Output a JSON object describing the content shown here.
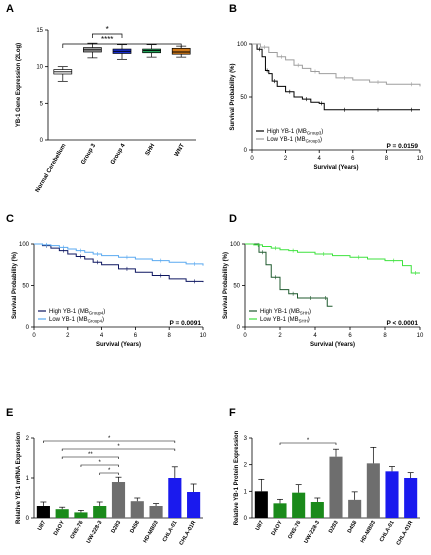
{
  "chart_data": [
    {
      "panel": "A",
      "type": "box",
      "ylabel": "YB-1 Gene Expression (2Log)",
      "ylim": [
        0,
        15
      ],
      "yticks": [
        "0",
        "5",
        "10",
        "15"
      ],
      "categories": [
        "Normal Cerebellum",
        "Group 3",
        "Group 4",
        "SHH",
        "WNT"
      ],
      "colors": [
        "#ffffff",
        "#9e9e9e",
        "#1a2fd0",
        "#23a35a",
        "#d17a1a"
      ],
      "boxes": [
        {
          "min": 8.0,
          "q1": 9.0,
          "median": 9.3,
          "q3": 9.6,
          "max": 10.0
        },
        {
          "min": 11.2,
          "q1": 12.0,
          "median": 12.3,
          "q3": 12.6,
          "max": 13.2
        },
        {
          "min": 11.0,
          "q1": 11.8,
          "median": 12.1,
          "q3": 12.4,
          "max": 13.0
        },
        {
          "min": 11.3,
          "q1": 11.9,
          "median": 12.2,
          "q3": 12.4,
          "max": 13.0
        },
        {
          "min": 11.3,
          "q1": 11.7,
          "median": 12.0,
          "q3": 12.5,
          "max": 12.8
        }
      ],
      "annotations": [
        "*",
        "****"
      ]
    },
    {
      "panel": "B",
      "type": "line",
      "ylabel": "Survival Probability (%)",
      "xlabel": "Survival (Years)",
      "xlim": [
        0,
        10
      ],
      "ylim": [
        0,
        100
      ],
      "xticks": [
        "0",
        "2",
        "4",
        "6",
        "8",
        "10"
      ],
      "yticks": [
        "0",
        "50",
        "100"
      ],
      "series": [
        {
          "name": "High YB-1 (MBGroup3)",
          "color": "#000000",
          "x": [
            0,
            0.3,
            0.6,
            0.8,
            1.0,
            1.2,
            1.5,
            2.0,
            2.5,
            3.0,
            3.5,
            4.0,
            4.3,
            5.0,
            6.0,
            7.0,
            8.0,
            9.0,
            10
          ],
          "y": [
            100,
            95,
            88,
            75,
            72,
            65,
            60,
            55,
            50,
            48,
            45,
            44,
            38,
            38,
            38,
            38,
            38,
            38,
            38
          ]
        },
        {
          "name": "Low YB-1 (MBGroup3)",
          "color": "#9e9e9e",
          "x": [
            0,
            0.5,
            1.0,
            1.5,
            2.0,
            2.5,
            3.0,
            3.5,
            4.0,
            5.0,
            6.0,
            7.0,
            8.0,
            9.0,
            10
          ],
          "y": [
            100,
            97,
            92,
            88,
            85,
            80,
            77,
            74,
            72,
            68,
            66,
            64,
            62,
            62,
            60
          ]
        }
      ],
      "pvalue": "P = 0.0159"
    },
    {
      "panel": "C",
      "type": "line",
      "ylabel": "Survival Probability (%)",
      "xlabel": "Survival (Years)",
      "xlim": [
        0,
        10
      ],
      "ylim": [
        0,
        100
      ],
      "xticks": [
        "0",
        "2",
        "4",
        "6",
        "8",
        "10"
      ],
      "yticks": [
        "0",
        "50",
        "100"
      ],
      "series": [
        {
          "name": "High YB-1 (MBGroup4)",
          "color": "#0d1660",
          "x": [
            0,
            0.5,
            1.0,
            1.5,
            2.0,
            2.5,
            3.0,
            3.5,
            4.0,
            5.0,
            6.0,
            7.0,
            8.0,
            9.0,
            10
          ],
          "y": [
            100,
            98,
            95,
            92,
            88,
            85,
            82,
            78,
            75,
            70,
            66,
            62,
            58,
            55,
            54
          ]
        },
        {
          "name": "Low YB-1 (MBGroup4)",
          "color": "#5aa9f0",
          "x": [
            0,
            0.5,
            1.0,
            1.5,
            2.0,
            2.5,
            3.0,
            3.5,
            4.0,
            5.0,
            6.0,
            7.0,
            8.0,
            9.0,
            10
          ],
          "y": [
            100,
            99,
            98,
            96,
            94,
            92,
            90,
            88,
            86,
            84,
            82,
            80,
            78,
            76,
            74
          ]
        }
      ],
      "pvalue": "P = 0.0091"
    },
    {
      "panel": "D",
      "type": "line",
      "ylabel": "Survival Probability (%)",
      "xlabel": "Survival (Years)",
      "xlim": [
        0,
        10
      ],
      "ylim": [
        0,
        100
      ],
      "xticks": [
        "0",
        "2",
        "4",
        "6",
        "8",
        "10"
      ],
      "yticks": [
        "0",
        "50",
        "100"
      ],
      "series": [
        {
          "name": "High YB-1 (MBSHH)",
          "color": "#1f5a2e",
          "x": [
            0,
            0.8,
            1.2,
            1.5,
            2.0,
            2.5,
            3.0,
            3.5,
            4.0,
            4.5,
            4.7,
            5.0
          ],
          "y": [
            100,
            90,
            75,
            60,
            45,
            40,
            35,
            35,
            35,
            35,
            25,
            25
          ]
        },
        {
          "name": "Low YB-1 (MBSHH)",
          "color": "#3ee23e",
          "x": [
            0,
            0.5,
            1.0,
            1.5,
            2.0,
            2.5,
            3.0,
            4.0,
            5.0,
            6.0,
            7.0,
            8.0,
            9.0,
            9.5,
            10
          ],
          "y": [
            100,
            99,
            97,
            95,
            93,
            92,
            90,
            88,
            86,
            84,
            82,
            80,
            74,
            65,
            65
          ]
        }
      ],
      "pvalue": "P < 0.0001"
    },
    {
      "panel": "E",
      "type": "bar",
      "ylabel": "Relative YB-1 mRNA Expression",
      "ylim": [
        0,
        2
      ],
      "yticks": [
        "0",
        "1",
        "2"
      ],
      "categories": [
        "U87",
        "DAOY",
        "ONS-76",
        "UW-228-3",
        "D283",
        "D458",
        "HD-MB03",
        "CHLA-01",
        "CHLA-01R"
      ],
      "values": [
        0.3,
        0.22,
        0.14,
        0.3,
        0.9,
        0.42,
        0.3,
        1.0,
        0.65
      ],
      "errors": [
        0.1,
        0.05,
        0.05,
        0.1,
        0.12,
        0.08,
        0.06,
        0.28,
        0.2
      ],
      "colors": [
        "#000000",
        "#1a8a1a",
        "#1a8a1a",
        "#1a8a1a",
        "#6e6e6e",
        "#6e6e6e",
        "#6e6e6e",
        "#1a1aee",
        "#1a1aee"
      ],
      "annotations": [
        "*",
        "*",
        "**",
        "*",
        "*"
      ]
    },
    {
      "panel": "F",
      "type": "bar",
      "ylabel": "Relative YB-1 Protein Expression",
      "ylim": [
        0,
        3
      ],
      "yticks": [
        "0",
        "1",
        "2",
        "3"
      ],
      "categories": [
        "U87",
        "DAOY",
        "ONS-76",
        "UW-228-3",
        "D283",
        "D458",
        "HD-MB03",
        "CHLA-01",
        "CHLA-01R"
      ],
      "values": [
        1.0,
        0.55,
        0.95,
        0.6,
        2.3,
        0.68,
        2.05,
        1.75,
        1.5
      ],
      "errors": [
        0.45,
        0.15,
        0.3,
        0.15,
        0.28,
        0.3,
        0.6,
        0.18,
        0.2
      ],
      "colors": [
        "#000000",
        "#1a8a1a",
        "#1a8a1a",
        "#1a8a1a",
        "#6e6e6e",
        "#6e6e6e",
        "#6e6e6e",
        "#1a1aee",
        "#1a1aee"
      ],
      "annotations": [
        "*"
      ]
    }
  ]
}
